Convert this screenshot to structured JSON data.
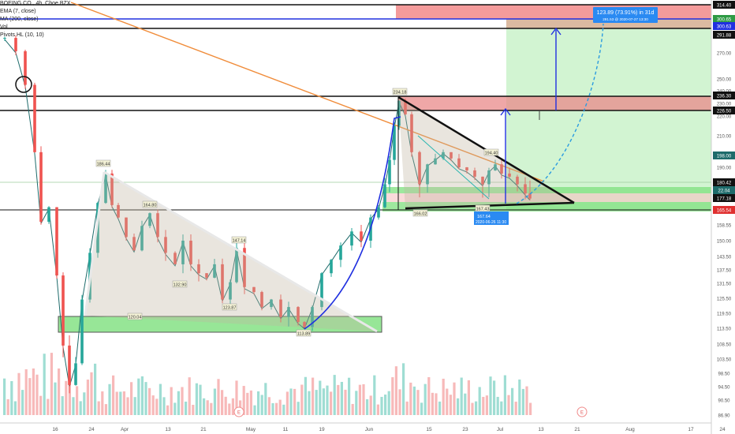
{
  "legend": {
    "symbol": "BOEING CO., 4h, Cboe BZX",
    "ema": "EMA (7, close)",
    "ma": "MA (200, close)",
    "vol": "Vol",
    "pivots": "Pivots HL (10, 10)"
  },
  "chart_data": {
    "type": "candlestick",
    "price_axis_ticks": [
      314.4,
      300.65,
      300.63,
      291.88,
      270.0,
      250.0,
      240.0,
      236.3,
      230.0,
      226.5,
      220.0,
      210.0,
      198.0,
      190.0,
      180.42,
      177.18,
      165.54,
      158.55,
      150.0,
      143.5,
      137.5,
      131.5,
      125.5,
      119.5,
      113.5,
      108.5,
      103.5,
      98.5,
      94.5,
      90.5,
      86.9
    ],
    "time_axis_ticks": [
      "16",
      "24",
      "Apr",
      "13",
      "21",
      "May",
      "11",
      "19",
      "Jun",
      "15",
      "23",
      "Jul",
      "13",
      "21",
      "Aug",
      "17",
      "24"
    ],
    "ylim": [
      86.9,
      314.4
    ],
    "pivot_labels": [
      "186.44",
      "164.80",
      "147.14",
      "132.90",
      "123.87",
      "120.04",
      "113.89",
      "234.18",
      "194.40",
      "167.43",
      "166.02"
    ],
    "badges": [
      "22.04",
      "177.18",
      "165.54"
    ],
    "measure_label": {
      "main": "123.89 (73.91%) in 31d",
      "sub": "291.53 @ 2020-07-27 13:30"
    },
    "date_label": {
      "value": "167.64",
      "datetime": "2020-06-26 11:30"
    },
    "events": [
      "E",
      "E"
    ],
    "colors": {
      "up": "#26a69a",
      "down": "#ef5350",
      "ema": "#1e6b6b",
      "ma200": "#f08c3a",
      "blue": "#2030e0",
      "green_zone": "#7ee07e",
      "red_zone": "#f28a8a"
    }
  }
}
